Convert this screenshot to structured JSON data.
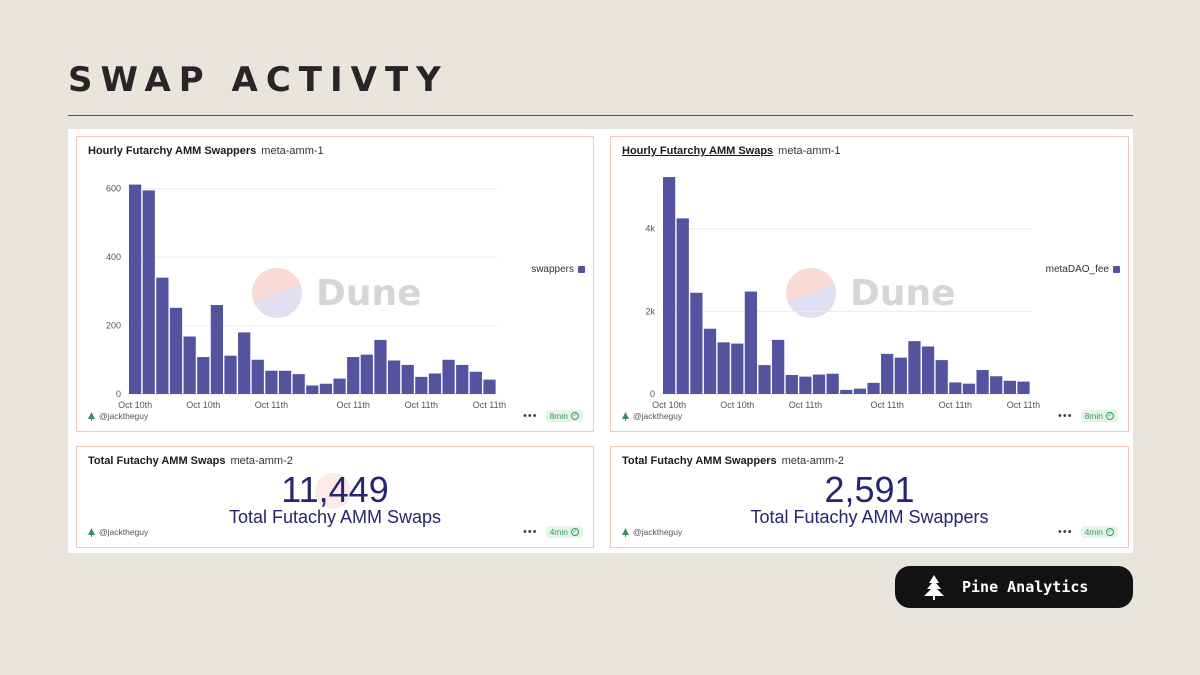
{
  "page": {
    "title": "SWAP ACTIVTY"
  },
  "cards": [
    {
      "title": "Hourly Futarchy AMM Swappers",
      "subtitle": "meta-amm-1",
      "author": "@jacktheguy",
      "age": "8min",
      "watermark": "Dune"
    },
    {
      "title": "Hourly Futarchy AMM Swaps",
      "subtitle": "meta-amm-1",
      "author": "@jacktheguy",
      "age": "8min",
      "watermark": "Dune"
    },
    {
      "title": "Total Futachy AMM Swaps",
      "subtitle": "meta-amm-2",
      "value": "11,449",
      "label": "Total Futachy AMM Swaps",
      "author": "@jacktheguy",
      "age": "4min"
    },
    {
      "title": "Total Futachy AMM Swappers",
      "subtitle": "meta-amm-2",
      "value": "2,591",
      "label": "Total Futachy AMM Swappers",
      "author": "@jacktheguy",
      "age": "4min"
    }
  ],
  "brand": {
    "name": "Pine Analytics",
    "icon": "pine-tree-icon"
  },
  "colors": {
    "bar": "#5453a0",
    "card_border": "#f3c6bc",
    "value_text": "#27256e",
    "background": "#e9e5da"
  },
  "chart_data": [
    {
      "type": "bar",
      "title": "Hourly Futarchy AMM Swappers",
      "xticks": [
        "Oct 10th",
        "Oct 10th",
        "Oct 11th",
        "Oct 11th",
        "Oct 11th",
        "Oct 11th"
      ],
      "yticks": [
        "0",
        "200",
        "400",
        "600"
      ],
      "ylim": [
        0,
        640
      ],
      "grid": true,
      "legend_position": "right",
      "series": [
        {
          "name": "swappers",
          "values": [
            612,
            595,
            340,
            252,
            168,
            108,
            260,
            112,
            180,
            100,
            68,
            68,
            58,
            25,
            30,
            45,
            108,
            115,
            158,
            98,
            85,
            50,
            60,
            100,
            85,
            65,
            42
          ]
        }
      ]
    },
    {
      "type": "bar",
      "title": "Hourly Futarchy AMM Swaps",
      "xticks": [
        "Oct 10th",
        "Oct 10th",
        "Oct 11th",
        "Oct 11th",
        "Oct 11th",
        "Oct 11th"
      ],
      "yticks": [
        "0",
        "2k",
        "4k"
      ],
      "ylim": [
        0,
        5300
      ],
      "grid": true,
      "legend_position": "right",
      "series": [
        {
          "name": "metaDAO_fee",
          "values": [
            5250,
            4250,
            2450,
            1580,
            1250,
            1220,
            2480,
            700,
            1310,
            460,
            420,
            470,
            490,
            100,
            130,
            270,
            970,
            880,
            1280,
            1150,
            820,
            280,
            250,
            580,
            430,
            320,
            300
          ]
        }
      ]
    }
  ]
}
